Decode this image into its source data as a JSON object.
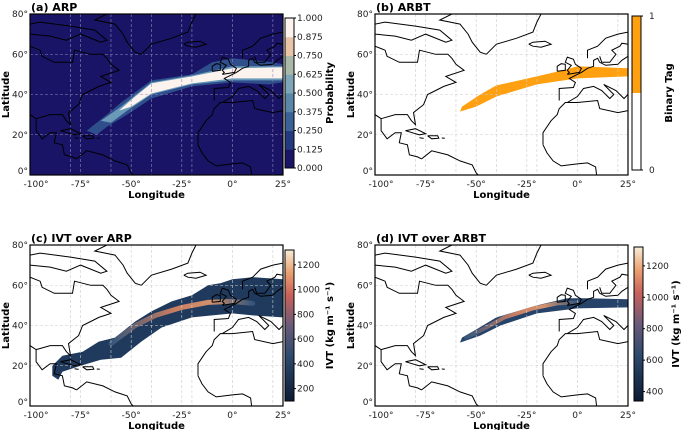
{
  "chart_data": [
    {
      "type": "map",
      "title": "(a) ARP",
      "xlabel": "Longitude",
      "ylabel": "Latitude",
      "xlim": [
        -100,
        25
      ],
      "ylim": [
        0,
        80
      ],
      "xticks": [
        "-100°",
        "-75°",
        "-50°",
        "-25°",
        "0°",
        "25°"
      ],
      "yticks": [
        "0°",
        "20°",
        "40°",
        "60°",
        "80°"
      ],
      "colorbar": {
        "label": "Probability",
        "ticks": [
          "0.000",
          "0.125",
          "0.250",
          "0.375",
          "0.500",
          "0.625",
          "0.750",
          "0.875",
          "1.000"
        ],
        "range": [
          0,
          1
        ]
      },
      "grid": true
    },
    {
      "type": "map",
      "title": "(b) ARBT",
      "xlabel": "Longitude",
      "ylabel": "Latitude",
      "xlim": [
        -100,
        25
      ],
      "ylim": [
        0,
        80
      ],
      "xticks": [
        "-100°",
        "-75°",
        "-50°",
        "-25°",
        "0°",
        "25°"
      ],
      "yticks": [
        "0°",
        "20°",
        "40°",
        "60°",
        "80°"
      ],
      "colorbar": {
        "label": "Binary Tag",
        "ticks": [
          "0",
          "1"
        ],
        "range": [
          0,
          1
        ],
        "color": "#ffa010"
      },
      "grid": true
    },
    {
      "type": "map",
      "title": "(c) IVT over ARP",
      "xlabel": "Longitude",
      "ylabel": "Latitude",
      "xlim": [
        -100,
        25
      ],
      "ylim": [
        0,
        80
      ],
      "xticks": [
        "-100°",
        "-75°",
        "-50°",
        "-25°",
        "0°",
        "25°"
      ],
      "yticks": [
        "0°",
        "20°",
        "40°",
        "60°",
        "80°"
      ],
      "colorbar": {
        "label": "IVT (kg m⁻¹ s⁻¹)",
        "ticks": [
          "200",
          "400",
          "600",
          "800",
          "1000",
          "1200"
        ],
        "range": [
          100,
          1320
        ]
      },
      "grid": true
    },
    {
      "type": "map",
      "title": "(d) IVT over ARBT",
      "xlabel": "Longitude",
      "ylabel": "Latitude",
      "xlim": [
        -100,
        25
      ],
      "ylim": [
        0,
        80
      ],
      "xticks": [
        "-100°",
        "-75°",
        "-50°",
        "-25°",
        "0°",
        "25°"
      ],
      "yticks": [
        "0°",
        "20°",
        "40°",
        "60°",
        "80°"
      ],
      "colorbar": {
        "label": "IVT (kg m⁻¹ s⁻¹)",
        "ticks": [
          "400",
          "600",
          "800",
          "1000",
          "1200"
        ],
        "range": [
          340,
          1320
        ]
      },
      "grid": true
    }
  ]
}
